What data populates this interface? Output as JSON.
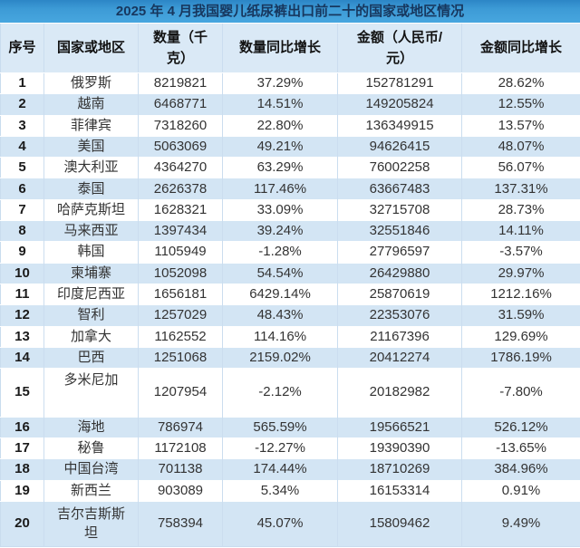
{
  "colors": {
    "title_bar_top": "#2C86C6",
    "title_bar": "#429FD9",
    "title_text": "#17375E",
    "header_bg": "#DAE9F6",
    "row_bg": "#FFFFFF",
    "row_alt_bg": "#D3E5F4",
    "grid_line": "#CBDDEF",
    "body_text": "#333333"
  },
  "chart_data": {
    "type": "table",
    "title": "2025 年 4 月我国婴儿纸尿裤出口前二十的国家或地区情况",
    "columns": [
      "序号",
      "国家或地区",
      "数量（千克）",
      "数量同比增长",
      "金额（人民币/元）",
      "金额同比增长"
    ],
    "rows": [
      {
        "rank": "1",
        "country": "俄罗斯",
        "quantity": "8219821",
        "quantity_yoy": "37.29%",
        "amount": "152781291",
        "amount_yoy": "28.62%"
      },
      {
        "rank": "2",
        "country": "越南",
        "quantity": "6468771",
        "quantity_yoy": "14.51%",
        "amount": "149205824",
        "amount_yoy": "12.55%"
      },
      {
        "rank": "3",
        "country": "菲律宾",
        "quantity": "7318260",
        "quantity_yoy": "22.80%",
        "amount": "136349915",
        "amount_yoy": "13.57%"
      },
      {
        "rank": "4",
        "country": "美国",
        "quantity": "5063069",
        "quantity_yoy": "49.21%",
        "amount": "94626415",
        "amount_yoy": "48.07%"
      },
      {
        "rank": "5",
        "country": "澳大利亚",
        "quantity": "4364270",
        "quantity_yoy": "63.29%",
        "amount": "76002258",
        "amount_yoy": "56.07%"
      },
      {
        "rank": "6",
        "country": "泰国",
        "quantity": "2626378",
        "quantity_yoy": "117.46%",
        "amount": "63667483",
        "amount_yoy": "137.31%"
      },
      {
        "rank": "7",
        "country": "哈萨克斯坦",
        "quantity": "1628321",
        "quantity_yoy": "33.09%",
        "amount": "32715708",
        "amount_yoy": "28.73%"
      },
      {
        "rank": "8",
        "country": "马来西亚",
        "quantity": "1397434",
        "quantity_yoy": "39.24%",
        "amount": "32551846",
        "amount_yoy": "14.11%"
      },
      {
        "rank": "9",
        "country": "韩国",
        "quantity": "1105949",
        "quantity_yoy": "-1.28%",
        "amount": "27796597",
        "amount_yoy": "-3.57%"
      },
      {
        "rank": "10",
        "country": "柬埔寨",
        "quantity": "1052098",
        "quantity_yoy": "54.54%",
        "amount": "26429880",
        "amount_yoy": "29.97%"
      },
      {
        "rank": "11",
        "country": "印度尼西亚",
        "quantity": "1656181",
        "quantity_yoy": "6429.14%",
        "amount": "25870619",
        "amount_yoy": "1212.16%"
      },
      {
        "rank": "12",
        "country": "智利",
        "quantity": "1257029",
        "quantity_yoy": "48.43%",
        "amount": "22353076",
        "amount_yoy": "31.59%"
      },
      {
        "rank": "13",
        "country": "加拿大",
        "quantity": "1162552",
        "quantity_yoy": "114.16%",
        "amount": "21167396",
        "amount_yoy": "129.69%"
      },
      {
        "rank": "14",
        "country": "巴西",
        "quantity": "1251068",
        "quantity_yoy": "2159.02%",
        "amount": "20412274",
        "amount_yoy": "1786.19%"
      },
      {
        "rank": "15",
        "country": "多米尼加",
        "quantity": "1207954",
        "quantity_yoy": "-2.12%",
        "amount": "20182982",
        "amount_yoy": "-7.80%",
        "tall": true,
        "name_top": true
      },
      {
        "rank": "16",
        "country": "海地",
        "quantity": "786974",
        "quantity_yoy": "565.59%",
        "amount": "19566521",
        "amount_yoy": "526.12%"
      },
      {
        "rank": "17",
        "country": "秘鲁",
        "quantity": "1172108",
        "quantity_yoy": "-12.27%",
        "amount": "19390390",
        "amount_yoy": "-13.65%"
      },
      {
        "rank": "18",
        "country": "中国台湾",
        "quantity": "701138",
        "quantity_yoy": "174.44%",
        "amount": "18710269",
        "amount_yoy": "384.96%"
      },
      {
        "rank": "19",
        "country": "新西兰",
        "quantity": "903089",
        "quantity_yoy": "5.34%",
        "amount": "16153314",
        "amount_yoy": "0.91%"
      },
      {
        "rank": "20",
        "country": "吉尔吉斯斯坦",
        "quantity": "758394",
        "quantity_yoy": "45.07%",
        "amount": "15809462",
        "amount_yoy": "9.49%",
        "tall": true
      }
    ]
  }
}
